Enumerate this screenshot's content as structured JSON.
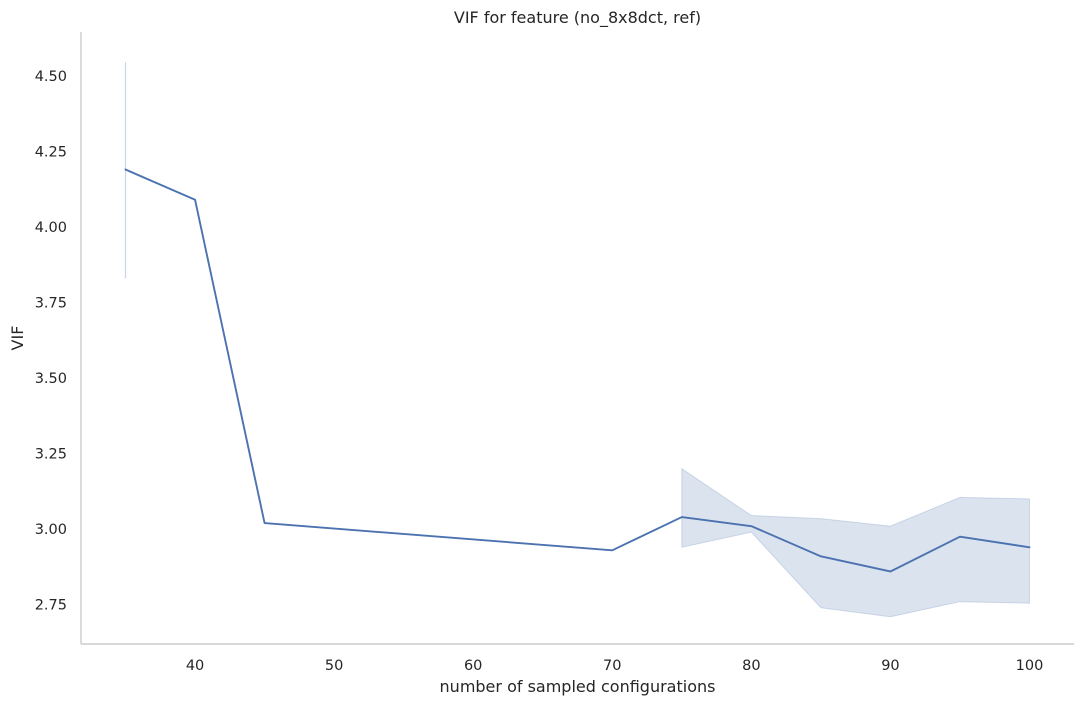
{
  "chart_data": {
    "type": "line",
    "title": "VIF for feature (no_8x8dct, ref)",
    "xlabel": "number of sampled configurations",
    "ylabel": "VIF",
    "xlim": [
      31.8,
      103.2
    ],
    "ylim": [
      2.62,
      4.645
    ],
    "x_ticks": [
      "40",
      "50",
      "60",
      "70",
      "80",
      "90",
      "100"
    ],
    "y_ticks": [
      "2.75",
      "3.00",
      "3.25",
      "3.50",
      "3.75",
      "4.00",
      "4.25",
      "4.50"
    ],
    "grid": false,
    "legend": "none",
    "series": [
      {
        "x": [
          35,
          40,
          45,
          70,
          75,
          80,
          85,
          90,
          95,
          100
        ],
        "y": [
          4.19,
          4.09,
          3.02,
          2.93,
          3.04,
          3.01,
          2.91,
          2.86,
          2.975,
          2.94
        ],
        "ci_lower": [
          3.83,
          null,
          null,
          null,
          2.94,
          2.99,
          2.74,
          2.71,
          2.76,
          2.755
        ],
        "ci_upper": [
          4.545,
          null,
          null,
          null,
          3.2,
          3.045,
          3.035,
          3.01,
          3.105,
          3.1
        ]
      }
    ],
    "colors": {
      "line": "#4c72b0",
      "band": "#4c72b0",
      "axis": "#cccccc",
      "text": "#262626"
    }
  }
}
